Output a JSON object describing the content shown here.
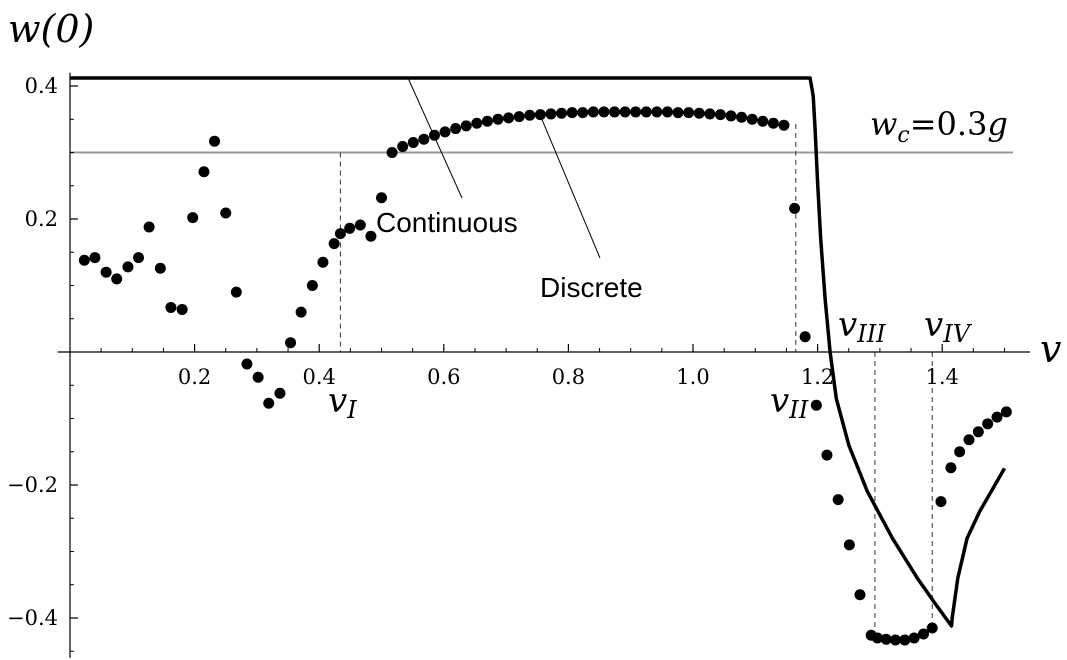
{
  "chart_data": {
    "type": "scatter",
    "ylabel": "w(0)",
    "xlabel": "v",
    "xlim": [
      -0.02,
      1.52
    ],
    "ylim": [
      -0.46,
      0.42
    ],
    "x_ticks": [
      0.2,
      0.4,
      0.6,
      0.8,
      1.0,
      1.2,
      1.4
    ],
    "x_tick_labels": [
      "0.2",
      "0.4",
      "0.6",
      "0.8",
      "1.0",
      "1.2",
      "1.4"
    ],
    "y_ticks": [
      -0.4,
      -0.2,
      0.2,
      0.4
    ],
    "y_tick_labels": [
      "−0.4",
      "−0.2",
      "0.2",
      "0.4"
    ],
    "threshold": {
      "value": 0.3,
      "label": "w_c = 0.3g"
    },
    "vlines": [
      {
        "x": 0.434,
        "label": "v_I",
        "ymax": 0.3
      },
      {
        "x": 1.165,
        "label": "v_II",
        "ymax": 0.343
      },
      {
        "x": 1.292,
        "label": "v_III",
        "ymin": -0.43
      },
      {
        "x": 1.384,
        "label": "v_IV",
        "ymin": -0.412
      }
    ],
    "series": [
      {
        "name": "Continuous",
        "style": "line",
        "x": [
          0.0,
          1.188,
          1.193,
          1.196,
          1.2,
          1.205,
          1.212,
          1.22,
          1.23,
          1.25,
          1.28,
          1.32,
          1.36,
          1.39,
          1.415,
          1.416,
          1.425,
          1.44,
          1.46,
          1.5
        ],
        "y": [
          0.412,
          0.412,
          0.385,
          0.335,
          0.255,
          0.17,
          0.08,
          0.0,
          -0.07,
          -0.14,
          -0.21,
          -0.28,
          -0.34,
          -0.38,
          -0.412,
          -0.4,
          -0.34,
          -0.28,
          -0.24,
          -0.175
        ]
      },
      {
        "name": "Discrete",
        "style": "points",
        "x": [
          0.023,
          0.04,
          0.058,
          0.075,
          0.093,
          0.11,
          0.127,
          0.145,
          0.162,
          0.18,
          0.197,
          0.215,
          0.232,
          0.25,
          0.267,
          0.284,
          0.302,
          0.319,
          0.337,
          0.354,
          0.371,
          0.389,
          0.406,
          0.424,
          0.434,
          0.449,
          0.466,
          0.483,
          0.5,
          0.517,
          0.534,
          0.551,
          0.568,
          0.585,
          0.602,
          0.619,
          0.636,
          0.653,
          0.67,
          0.687,
          0.704,
          0.721,
          0.738,
          0.755,
          0.772,
          0.789,
          0.806,
          0.823,
          0.84,
          0.857,
          0.874,
          0.891,
          0.908,
          0.925,
          0.942,
          0.959,
          0.976,
          0.993,
          1.01,
          1.027,
          1.044,
          1.061,
          1.078,
          1.095,
          1.112,
          1.129,
          1.146,
          1.163,
          1.18,
          1.198,
          1.215,
          1.233,
          1.251,
          1.268,
          1.286,
          1.296,
          1.31,
          1.325,
          1.34,
          1.355,
          1.37,
          1.384,
          1.398,
          1.414,
          1.428,
          1.443,
          1.458,
          1.473,
          1.488,
          1.503
        ],
        "y": [
          0.138,
          0.142,
          0.12,
          0.11,
          0.128,
          0.142,
          0.188,
          0.126,
          0.067,
          0.064,
          0.202,
          0.271,
          0.317,
          0.209,
          0.09,
          -0.018,
          -0.038,
          -0.077,
          -0.062,
          0.014,
          0.06,
          0.1,
          0.135,
          0.163,
          0.178,
          0.186,
          0.191,
          0.174,
          0.232,
          0.3,
          0.309,
          0.315,
          0.32,
          0.326,
          0.331,
          0.336,
          0.34,
          0.344,
          0.347,
          0.35,
          0.352,
          0.354,
          0.356,
          0.357,
          0.358,
          0.359,
          0.36,
          0.36,
          0.361,
          0.361,
          0.361,
          0.361,
          0.361,
          0.361,
          0.361,
          0.361,
          0.36,
          0.36,
          0.359,
          0.358,
          0.357,
          0.355,
          0.353,
          0.35,
          0.347,
          0.344,
          0.341,
          0.216,
          0.023,
          -0.08,
          -0.155,
          -0.222,
          -0.29,
          -0.365,
          -0.426,
          -0.43,
          -0.432,
          -0.433,
          -0.433,
          -0.43,
          -0.424,
          -0.415,
          -0.225,
          -0.174,
          -0.15,
          -0.132,
          -0.12,
          -0.108,
          -0.098,
          -0.09
        ]
      }
    ]
  }
}
